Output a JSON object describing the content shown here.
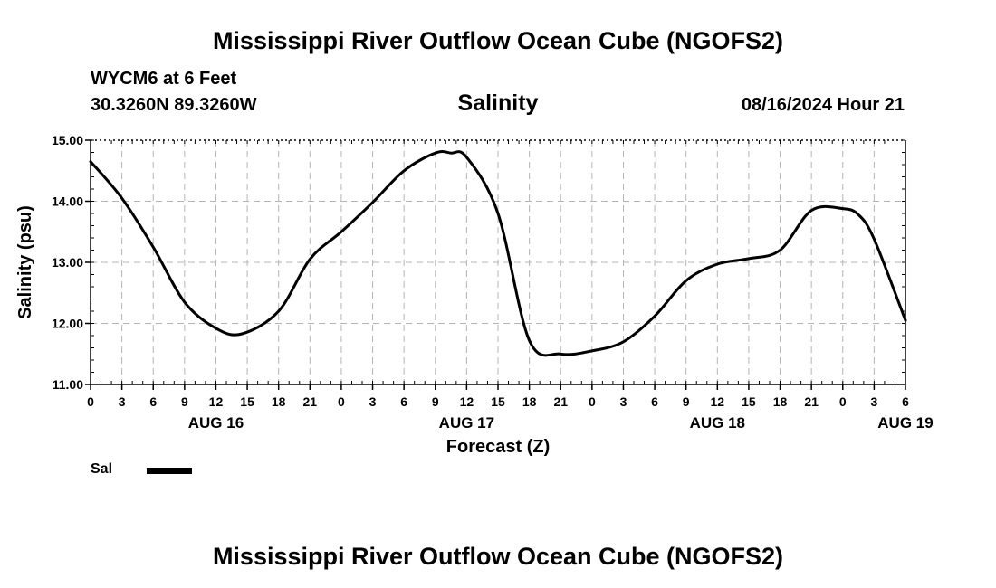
{
  "header": {
    "title": "Mississippi River Outflow Ocean Cube (NGOFS2)",
    "station": "WYCM6 at 6 Feet",
    "coords": "30.3260N  89.3260W",
    "datetime": "08/16/2024 Hour 21"
  },
  "footer": {
    "title": "Mississippi River Outflow Ocean Cube (NGOFS2)"
  },
  "legend": {
    "label": "Sal"
  },
  "colors": {
    "line": "#000000",
    "grid": "#b4b4b4"
  },
  "chart_data": {
    "type": "line",
    "title": "Salinity",
    "xlabel": "Forecast (Z)",
    "ylabel": "Salinity (psu)",
    "xlim": [
      0,
      78
    ],
    "ylim": [
      11.0,
      15.0
    ],
    "grid": true,
    "x_ticks": [
      0,
      3,
      6,
      9,
      12,
      15,
      18,
      21,
      24,
      27,
      30,
      33,
      36,
      39,
      42,
      45,
      48,
      51,
      54,
      57,
      60,
      63,
      66,
      69,
      72,
      75,
      78
    ],
    "x_tick_labels": [
      "0",
      "3",
      "6",
      "9",
      "12",
      "15",
      "18",
      "21",
      "0",
      "3",
      "6",
      "9",
      "12",
      "15",
      "18",
      "21",
      "0",
      "3",
      "6",
      "9",
      "12",
      "15",
      "18",
      "21",
      "0",
      "3",
      "6"
    ],
    "y_ticks": [
      11.0,
      12.0,
      13.0,
      14.0,
      15.0
    ],
    "y_tick_labels": [
      "11.00",
      "12.00",
      "13.00",
      "14.00",
      "15.00"
    ],
    "day_labels": [
      {
        "x": 12,
        "label": "AUG 16"
      },
      {
        "x": 36,
        "label": "AUG 17"
      },
      {
        "x": 60,
        "label": "AUG 18"
      },
      {
        "x": 78,
        "label": "AUG 19"
      }
    ],
    "series": [
      {
        "name": "Sal",
        "x": [
          0,
          3,
          6,
          9,
          12,
          14.5,
          18,
          21,
          24,
          27,
          30,
          33,
          34.5,
          36,
          39,
          42,
          45,
          48,
          51,
          54,
          57,
          60,
          63,
          66,
          69,
          72,
          73.5,
          75,
          78
        ],
        "values": [
          14.65,
          14.05,
          13.25,
          12.35,
          11.92,
          11.83,
          12.2,
          13.05,
          13.5,
          13.98,
          14.5,
          14.79,
          14.79,
          14.72,
          13.8,
          11.72,
          11.5,
          11.55,
          11.7,
          12.12,
          12.7,
          12.97,
          13.06,
          13.2,
          13.85,
          13.88,
          13.78,
          13.38,
          12.05
        ]
      }
    ]
  }
}
